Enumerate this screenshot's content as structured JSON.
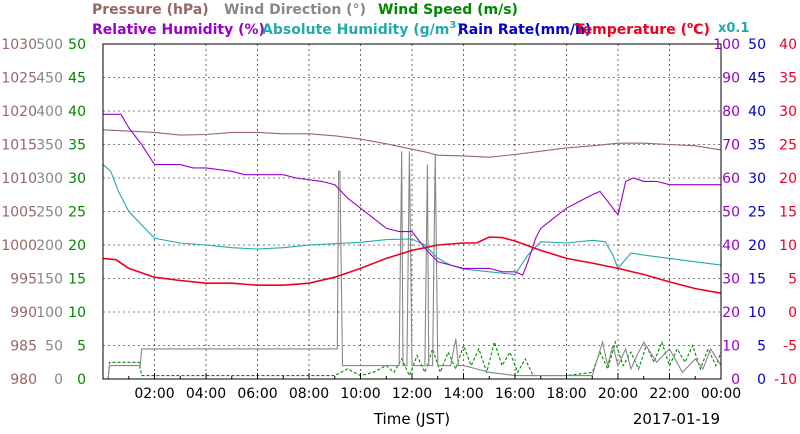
{
  "chart_data": {
    "type": "line",
    "date_label": "2017-01-19",
    "xlabel": "Time (JST)",
    "x_ticks": [
      "02:00",
      "04:00",
      "06:00",
      "08:00",
      "10:00",
      "12:00",
      "14:00",
      "16:00",
      "18:00",
      "20:00",
      "22:00",
      "00:00"
    ],
    "x_range_hours": [
      0,
      24
    ],
    "grid": true,
    "legend": {
      "pressure": {
        "label": "Pressure (hPa)",
        "color": "#996666"
      },
      "wind_direction": {
        "label": "Wind Direction (°)",
        "color": "#888888"
      },
      "wind_speed": {
        "label": "Wind Speed (m/s)",
        "color": "#008800"
      },
      "humidity": {
        "label": "Relative Humidity (%)",
        "color": "#9900cc"
      },
      "abs_humidity_prefix": "Absolute Humidity (g/m",
      "abs_humidity_sup": "3",
      "abs_humidity_suffix": ")",
      "abs_humidity_color": "#22aaaa",
      "rain_rate": {
        "label": "Rain Rate(mm/h)",
        "color": "#0000cc"
      },
      "temperature_prefix": "Temperature (",
      "temperature_mid": "o",
      "temperature_suffix": "C)",
      "temperature_color": "#ee0022",
      "scale_note": "x0.1"
    },
    "axes": {
      "pressure": {
        "ticks": [
          "980",
          "985",
          "990",
          "995",
          "1000",
          "1005",
          "1010",
          "1015",
          "1020",
          "1025",
          "1030"
        ],
        "color": "#996666",
        "range": [
          980,
          1030
        ]
      },
      "wind_direction": {
        "ticks": [
          "0",
          "50",
          "100",
          "150",
          "200",
          "250",
          "300",
          "350",
          "400",
          "450",
          "500"
        ],
        "color": "#888888",
        "range": [
          0,
          500
        ]
      },
      "wind_speed": {
        "ticks": [
          "0",
          "5",
          "10",
          "15",
          "20",
          "25",
          "30",
          "35",
          "40",
          "45",
          "50"
        ],
        "color": "#008800",
        "range": [
          0,
          50
        ]
      },
      "humidity": {
        "ticks": [
          "0",
          "10",
          "20",
          "30",
          "40",
          "50",
          "60",
          "70",
          "80",
          "90",
          "100"
        ],
        "color": "#9900cc",
        "range": [
          0,
          100
        ]
      },
      "rain_rate": {
        "ticks": [
          "0",
          "5",
          "10",
          "15",
          "20",
          "25",
          "30",
          "35",
          "40",
          "45",
          "50"
        ],
        "color": "#0000cc",
        "range": [
          0,
          50
        ]
      },
      "temperature": {
        "ticks": [
          "-10",
          "-5",
          "0",
          "5",
          "10",
          "15",
          "20",
          "25",
          "30",
          "35",
          "40"
        ],
        "color": "#ee0022",
        "range": [
          -10,
          40
        ]
      }
    },
    "series": [
      {
        "key": "pressure",
        "color": "#996666",
        "axis": "pressure",
        "x": [
          0,
          1,
          2,
          3,
          4,
          5,
          6,
          7,
          8,
          9,
          10,
          11,
          12,
          12.5,
          13,
          14,
          15,
          16,
          17,
          18,
          19,
          20,
          21,
          22,
          23,
          24
        ],
        "y": [
          1017.2,
          1017.0,
          1016.8,
          1016.4,
          1016.5,
          1016.8,
          1016.8,
          1016.6,
          1016.6,
          1016.3,
          1015.8,
          1015.1,
          1014.3,
          1013.9,
          1013.4,
          1013.3,
          1013.1,
          1013.5,
          1014.0,
          1014.5,
          1014.8,
          1015.2,
          1015.2,
          1015.0,
          1014.8,
          1014.2
        ]
      },
      {
        "key": "humidity",
        "color": "#9900cc",
        "axis": "humidity",
        "x": [
          0,
          0.7,
          1.0,
          1.5,
          2.0,
          3.0,
          3.5,
          4.0,
          5.0,
          5.5,
          6.0,
          7.0,
          7.5,
          8.5,
          9.0,
          9.5,
          10.0,
          10.5,
          11.0,
          11.5,
          12.0,
          12.5,
          13.0,
          13.5,
          14.0,
          14.5,
          15.0,
          15.5,
          16.0,
          16.3,
          16.5,
          16.8,
          17.0,
          17.5,
          18.0,
          18.5,
          19.0,
          19.3,
          19.6,
          20.0,
          20.3,
          20.6,
          21.0,
          21.5,
          22.0,
          22.5,
          23.0,
          23.5,
          24.0
        ],
        "y": [
          79,
          79,
          75,
          70,
          64,
          64,
          63,
          63,
          62,
          61,
          61,
          61,
          60,
          59,
          58,
          54,
          51,
          48,
          45,
          44,
          44,
          39,
          35,
          34,
          33,
          33,
          33,
          32,
          32,
          31,
          35,
          42,
          45,
          48,
          51,
          53,
          55,
          56,
          53,
          49,
          59,
          60,
          59,
          59,
          58,
          58,
          58,
          58,
          58
        ]
      },
      {
        "key": "abs_humidity",
        "color": "#22aaaa",
        "axis": "wind_speed",
        "x": [
          0,
          0.3,
          0.6,
          1.0,
          1.5,
          2.0,
          3.0,
          4.0,
          5.0,
          6.0,
          7.0,
          8.0,
          9.0,
          10.0,
          11.0,
          12.0,
          12.5,
          13.0,
          13.5,
          14.0,
          15.0,
          16.0,
          16.5,
          17.0,
          18.0,
          19.0,
          19.5,
          19.8,
          20.0,
          20.5,
          21.0,
          22.0,
          23.0,
          24.0
        ],
        "y": [
          32,
          31,
          28,
          25,
          23,
          21,
          20.3,
          20.0,
          19.6,
          19.4,
          19.6,
          20.0,
          20.2,
          20.4,
          20.8,
          20.9,
          20.0,
          18.0,
          17.0,
          16.4,
          16.0,
          15.6,
          18.5,
          20.5,
          20.3,
          20.7,
          20.5,
          18.5,
          16.5,
          18.8,
          18.5,
          18.0,
          17.5,
          17.0
        ]
      },
      {
        "key": "temperature",
        "color": "#ee0022",
        "axis": "temperature",
        "x": [
          0,
          0.5,
          1.0,
          2.0,
          3.0,
          4.0,
          5.0,
          6.0,
          7.0,
          8.0,
          9.0,
          10.0,
          11.0,
          12.0,
          12.5,
          13.0,
          14.0,
          14.5,
          15.0,
          15.5,
          16.0,
          17.0,
          18.0,
          19.0,
          20.0,
          21.0,
          22.0,
          23.0,
          24.0
        ],
        "y": [
          8.0,
          7.8,
          6.5,
          5.2,
          4.7,
          4.3,
          4.3,
          4.0,
          4.0,
          4.3,
          5.2,
          6.5,
          8.0,
          9.2,
          9.6,
          10.0,
          10.3,
          10.3,
          11.2,
          11.1,
          10.6,
          9.2,
          8.0,
          7.3,
          6.5,
          5.6,
          4.5,
          3.5,
          2.8
        ]
      },
      {
        "key": "wind_direction",
        "color": "#888888",
        "axis": "wind_direction",
        "x": [
          0,
          0.2,
          0.25,
          1.0,
          1.45,
          1.5,
          4.0,
          6.0,
          8.0,
          9.1,
          9.15,
          9.2,
          9.3,
          9.35,
          10.0,
          11.0,
          11.5,
          11.6,
          11.65,
          11.8,
          11.9,
          12.0,
          12.5,
          12.6,
          12.65,
          12.8,
          12.9,
          13.0,
          13.5,
          13.7,
          13.8,
          14.0,
          14.5,
          15.0,
          16.0,
          17.0,
          18.0,
          19.0,
          19.2,
          19.4,
          19.6,
          19.8,
          20.0,
          20.3,
          20.5,
          20.8,
          21.0,
          21.5,
          22.0,
          22.5,
          23.0,
          23.3,
          23.6,
          24.0
        ],
        "y": [
          0,
          0,
          20,
          20,
          20,
          45,
          45,
          45,
          45,
          45,
          310,
          310,
          20,
          20,
          20,
          20,
          20,
          340,
          20,
          20,
          340,
          20,
          20,
          320,
          20,
          20,
          335,
          20,
          20,
          60,
          20,
          20,
          15,
          10,
          5,
          5,
          5,
          5,
          30,
          55,
          20,
          50,
          20,
          45,
          15,
          40,
          55,
          25,
          45,
          10,
          30,
          15,
          45,
          20
        ]
      },
      {
        "key": "wind_speed",
        "color": "#008800",
        "axis": "wind_speed",
        "x": [
          0,
          0.2,
          0.25,
          1.4,
          1.5,
          2.0,
          4.0,
          6.0,
          8.0,
          9.0,
          9.5,
          10.0,
          10.5,
          11.0,
          11.3,
          11.6,
          11.9,
          12.2,
          12.5,
          12.8,
          13.1,
          13.4,
          13.7,
          14.0,
          14.3,
          14.6,
          14.9,
          15.2,
          15.5,
          15.8,
          16.1,
          16.4,
          16.7,
          17.0,
          18.0,
          19.0,
          19.3,
          19.6,
          19.9,
          20.2,
          20.5,
          20.8,
          21.1,
          21.4,
          21.7,
          22.0,
          22.3,
          22.6,
          22.9,
          23.2,
          23.5,
          23.8,
          24.0
        ],
        "y": [
          0,
          0,
          2.5,
          2.5,
          0.5,
          0.5,
          0.5,
          0.5,
          0.5,
          0.5,
          1.5,
          0.5,
          1.0,
          2.0,
          1.0,
          3.0,
          0.5,
          3.5,
          1.0,
          4.5,
          1.0,
          4.0,
          1.5,
          5.0,
          2.0,
          4.5,
          1.0,
          5.5,
          2.0,
          4.0,
          1.0,
          3.0,
          0.5,
          0.5,
          0.5,
          1.0,
          4.0,
          1.5,
          5.5,
          2.0,
          4.0,
          1.5,
          5.0,
          2.5,
          5.5,
          2.0,
          4.5,
          2.5,
          5.0,
          1.5,
          4.5,
          2.0,
          4.0
        ]
      }
    ]
  }
}
